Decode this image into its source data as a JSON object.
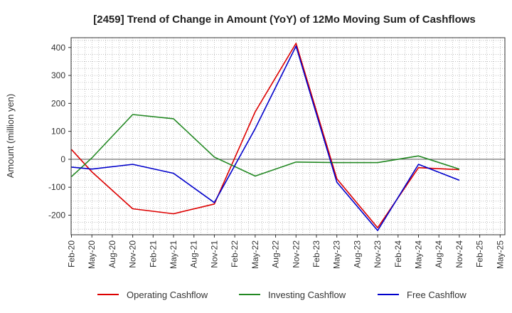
{
  "chart_data": {
    "type": "line",
    "title": "[2459]  Trend of Change in Amount (YoY) of 12Mo Moving Sum of Cashflows",
    "xlabel": "",
    "ylabel": "Amount (million yen)",
    "ylim": [
      -270,
      435
    ],
    "yticks": [
      400,
      300,
      200,
      100,
      0,
      -100,
      -200
    ],
    "grid": true,
    "legend_position": "bottom",
    "categories": [
      "Feb-20",
      "May-20",
      "Aug-20",
      "Nov-20",
      "Feb-21",
      "May-21",
      "Aug-21",
      "Nov-21",
      "Feb-22",
      "May-22",
      "Aug-22",
      "Nov-22",
      "Feb-23",
      "May-23",
      "Aug-23",
      "Nov-23",
      "Feb-24",
      "May-24",
      "Aug-24",
      "Nov-24",
      "Feb-25",
      "May-25"
    ],
    "series": [
      {
        "name": "Operating Cashflow",
        "color": "#dd0000",
        "values": [
          35,
          -45,
          null,
          -177,
          null,
          -195,
          null,
          -160,
          null,
          170,
          null,
          415,
          null,
          -70,
          null,
          -245,
          null,
          -30,
          null,
          -37,
          null,
          null
        ]
      },
      {
        "name": "Investing Cashflow",
        "color": "#228822",
        "values": [
          -62,
          5,
          null,
          160,
          null,
          145,
          null,
          8,
          null,
          -60,
          null,
          -10,
          null,
          -12,
          null,
          -12,
          null,
          12,
          null,
          -35,
          null,
          null
        ]
      },
      {
        "name": "Free Cashflow",
        "color": "#0000cc",
        "values": [
          -28,
          -35,
          null,
          -18,
          null,
          -50,
          null,
          -155,
          null,
          110,
          null,
          405,
          null,
          -82,
          null,
          -255,
          null,
          -18,
          null,
          -75,
          null,
          null
        ]
      }
    ]
  }
}
